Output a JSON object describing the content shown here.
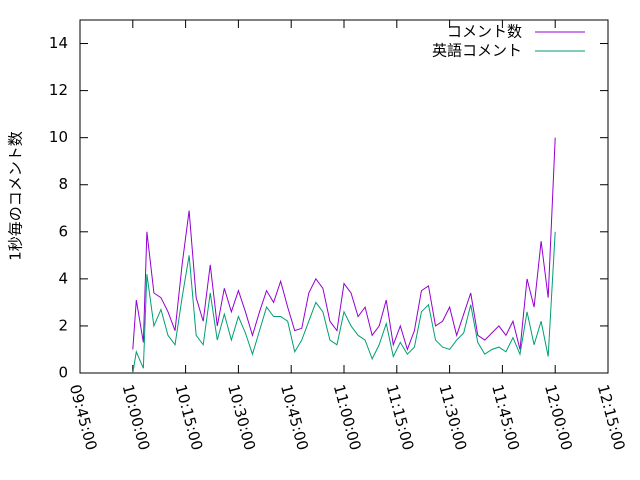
{
  "chart_data": {
    "type": "line",
    "ylabel": "1秒毎のコメント数",
    "x": [
      "10:00:00",
      "10:01:00",
      "10:03:00",
      "10:04:00",
      "10:06:00",
      "10:08:00",
      "10:10:00",
      "10:12:00",
      "10:14:00",
      "10:16:00",
      "10:18:00",
      "10:20:00",
      "10:22:00",
      "10:24:00",
      "10:26:00",
      "10:28:00",
      "10:30:00",
      "10:32:00",
      "10:34:00",
      "10:36:00",
      "10:38:00",
      "10:40:00",
      "10:42:00",
      "10:44:00",
      "10:46:00",
      "10:48:00",
      "10:50:00",
      "10:52:00",
      "10:54:00",
      "10:56:00",
      "10:58:00",
      "11:00:00",
      "11:02:00",
      "11:04:00",
      "11:06:00",
      "11:08:00",
      "11:10:00",
      "11:12:00",
      "11:14:00",
      "11:16:00",
      "11:18:00",
      "11:20:00",
      "11:22:00",
      "11:24:00",
      "11:26:00",
      "11:28:00",
      "11:30:00",
      "11:32:00",
      "11:34:00",
      "11:36:00",
      "11:38:00",
      "11:40:00",
      "11:42:00",
      "11:44:00",
      "11:46:00",
      "11:48:00",
      "11:50:00",
      "11:52:00",
      "11:54:00",
      "11:56:00",
      "11:58:00",
      "12:00:00"
    ],
    "series": [
      {
        "name": "コメント数",
        "color": "#9400d3",
        "values": [
          1.0,
          3.1,
          1.3,
          6.0,
          3.4,
          3.2,
          2.6,
          1.8,
          4.6,
          6.9,
          3.2,
          2.2,
          4.6,
          2.0,
          3.6,
          2.6,
          3.5,
          2.6,
          1.6,
          2.6,
          3.5,
          3.0,
          3.9,
          2.8,
          1.8,
          1.9,
          3.4,
          4.0,
          3.6,
          2.2,
          1.8,
          3.8,
          3.4,
          2.4,
          2.8,
          1.6,
          2.0,
          3.1,
          1.2,
          2.0,
          1.0,
          1.8,
          3.5,
          3.7,
          2.0,
          2.2,
          2.8,
          1.6,
          2.5,
          3.4,
          1.6,
          1.4,
          1.7,
          2.0,
          1.6,
          2.2,
          1.0,
          4.0,
          2.8,
          5.6,
          3.2,
          10.0
        ]
      },
      {
        "name": "英語コメント",
        "color": "#009e73",
        "values": [
          0,
          0.9,
          0.2,
          4.2,
          2.0,
          2.7,
          1.6,
          1.2,
          3.2,
          5.0,
          1.6,
          1.2,
          3.4,
          1.4,
          2.5,
          1.4,
          2.4,
          1.7,
          0.8,
          1.8,
          2.8,
          2.4,
          2.4,
          2.2,
          0.9,
          1.4,
          2.2,
          3.0,
          2.6,
          1.4,
          1.2,
          2.6,
          2.0,
          1.6,
          1.4,
          0.6,
          1.2,
          2.1,
          0.7,
          1.3,
          0.8,
          1.1,
          2.6,
          2.9,
          1.4,
          1.1,
          1.0,
          1.4,
          1.7,
          2.9,
          1.3,
          0.8,
          1.0,
          1.1,
          0.9,
          1.5,
          0.8,
          2.6,
          1.2,
          2.2,
          0.7,
          6.0
        ]
      }
    ],
    "xlim": [
      "09:45:00",
      "12:15:00"
    ],
    "xticks": [
      "09:45:00",
      "10:00:00",
      "10:15:00",
      "10:30:00",
      "10:45:00",
      "11:00:00",
      "11:15:00",
      "11:30:00",
      "11:45:00",
      "12:00:00",
      "12:15:00"
    ],
    "ylim": [
      0,
      15
    ],
    "yticks": [
      0,
      2,
      4,
      6,
      8,
      10,
      12,
      14
    ],
    "legend": "top-right"
  }
}
